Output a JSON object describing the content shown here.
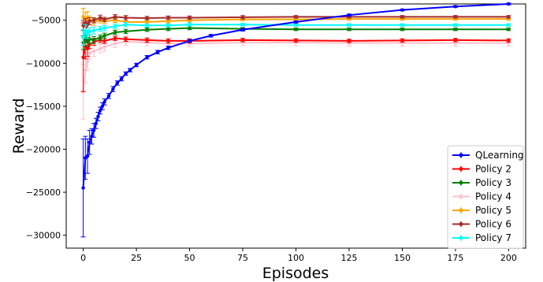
{
  "chart_data": {
    "type": "line",
    "title": "",
    "xlabel": "Episodes",
    "ylabel": "Reward",
    "xlim": [
      -8,
      208
    ],
    "ylim": [
      -31500,
      -3100
    ],
    "xticks": [
      0,
      25,
      50,
      75,
      100,
      125,
      150,
      175,
      200
    ],
    "yticks": [
      -30000,
      -25000,
      -20000,
      -15000,
      -10000,
      -5000
    ],
    "grid": false,
    "legend_position": "lower-right",
    "series": [
      {
        "name": "QLearning",
        "color": "#0000ff",
        "x": [
          0,
          1,
          2,
          3,
          4,
          5,
          6,
          7,
          8,
          9,
          10,
          12,
          14,
          16,
          18,
          20,
          22,
          25,
          30,
          35,
          40,
          50,
          60,
          75,
          100,
          125,
          150,
          175,
          200
        ],
        "y": [
          -24500,
          -21000,
          -20800,
          -19200,
          -18500,
          -17800,
          -17000,
          -16200,
          -15500,
          -15000,
          -14500,
          -13800,
          -13000,
          -12300,
          -11800,
          -11200,
          -10800,
          -10200,
          -9300,
          -8700,
          -8200,
          -7400,
          -6800,
          -6100,
          -5200,
          -4400,
          -3800,
          -3400,
          -3100
        ],
        "err": [
          5700,
          2500,
          2000,
          1400,
          900,
          800,
          600,
          500,
          400,
          400,
          350,
          300,
          300,
          250,
          250,
          200,
          200,
          200,
          200,
          200,
          200,
          150,
          150,
          150,
          120,
          120,
          100,
          100,
          100
        ]
      },
      {
        "name": "Policy 2",
        "color": "#ff0000",
        "x": [
          0,
          1,
          2,
          3,
          5,
          8,
          10,
          15,
          20,
          30,
          40,
          50,
          75,
          100,
          125,
          150,
          175,
          200
        ],
        "y": [
          -9300,
          -8000,
          -8300,
          -7800,
          -7500,
          -7300,
          -7400,
          -7100,
          -7200,
          -7300,
          -7400,
          -7400,
          -7300,
          -7350,
          -7400,
          -7350,
          -7300,
          -7350
        ],
        "err": [
          4000,
          1500,
          900,
          500,
          400,
          300,
          300,
          250,
          250,
          250,
          250,
          250,
          200,
          200,
          200,
          200,
          200,
          200
        ]
      },
      {
        "name": "Policy 3",
        "color": "#008000",
        "x": [
          0,
          1,
          2,
          3,
          5,
          8,
          10,
          15,
          20,
          30,
          40,
          50,
          75,
          100,
          125,
          150,
          175,
          200
        ],
        "y": [
          -7600,
          -6900,
          -7500,
          -7200,
          -7300,
          -7000,
          -6800,
          -6400,
          -6300,
          -6100,
          -6000,
          -5900,
          -6000,
          -6050,
          -6050,
          -6050,
          -6050,
          -6050
        ],
        "err": [
          800,
          600,
          500,
          500,
          400,
          300,
          300,
          250,
          250,
          200,
          200,
          200,
          150,
          150,
          150,
          150,
          150,
          150
        ]
      },
      {
        "name": "Policy 4",
        "color": "#ffc0cb",
        "x": [
          0,
          1,
          2,
          3,
          5,
          8,
          10,
          15,
          20,
          30,
          40,
          50,
          75,
          100,
          125,
          150,
          175,
          200
        ],
        "y": [
          -13300,
          -10800,
          -9800,
          -8800,
          -8600,
          -8300,
          -8100,
          -7700,
          -7500,
          -7600,
          -7700,
          -7700,
          -7600,
          -7600,
          -7650,
          -7650,
          -7650,
          -7650
        ],
        "err": [
          3200,
          1500,
          1000,
          800,
          600,
          500,
          500,
          450,
          400,
          400,
          400,
          400,
          350,
          350,
          350,
          350,
          350,
          350
        ]
      },
      {
        "name": "Policy 5",
        "color": "#ffa500",
        "x": [
          0,
          1,
          2,
          3,
          5,
          8,
          10,
          15,
          20,
          30,
          40,
          50,
          75,
          100,
          125,
          150,
          175,
          200
        ],
        "y": [
          -4600,
          -4900,
          -4700,
          -5000,
          -5200,
          -5000,
          -5100,
          -5000,
          -5200,
          -5200,
          -5100,
          -5000,
          -4900,
          -4900,
          -4850,
          -4850,
          -4850,
          -4850
        ],
        "err": [
          1000,
          800,
          700,
          500,
          400,
          300,
          300,
          250,
          250,
          200,
          200,
          200,
          150,
          150,
          150,
          150,
          150,
          150
        ]
      },
      {
        "name": "Policy 6",
        "color": "#a52a2a",
        "x": [
          0,
          1,
          2,
          3,
          5,
          8,
          10,
          15,
          20,
          30,
          40,
          50,
          75,
          100,
          125,
          150,
          175,
          200
        ],
        "y": [
          -5600,
          -5300,
          -5500,
          -5100,
          -5000,
          -4700,
          -4900,
          -4600,
          -4700,
          -4750,
          -4700,
          -4700,
          -4650,
          -4600,
          -4600,
          -4600,
          -4600,
          -4600
        ],
        "err": [
          600,
          500,
          400,
          400,
          300,
          300,
          250,
          250,
          250,
          200,
          200,
          200,
          200,
          150,
          150,
          150,
          150,
          150
        ]
      },
      {
        "name": "Policy 7",
        "color": "#00ffff",
        "x": [
          0,
          1,
          2,
          3,
          5,
          8,
          10,
          15,
          20,
          30,
          40,
          50,
          75,
          100,
          125,
          150,
          175,
          200
        ],
        "y": [
          -7000,
          -6200,
          -6600,
          -6300,
          -6200,
          -6000,
          -5900,
          -5700,
          -5500,
          -5600,
          -5600,
          -5500,
          -5500,
          -5550,
          -5550,
          -5550,
          -5550,
          -5550
        ],
        "err": [
          900,
          700,
          500,
          400,
          400,
          300,
          300,
          250,
          250,
          200,
          200,
          200,
          150,
          150,
          150,
          150,
          150,
          150
        ]
      }
    ]
  }
}
